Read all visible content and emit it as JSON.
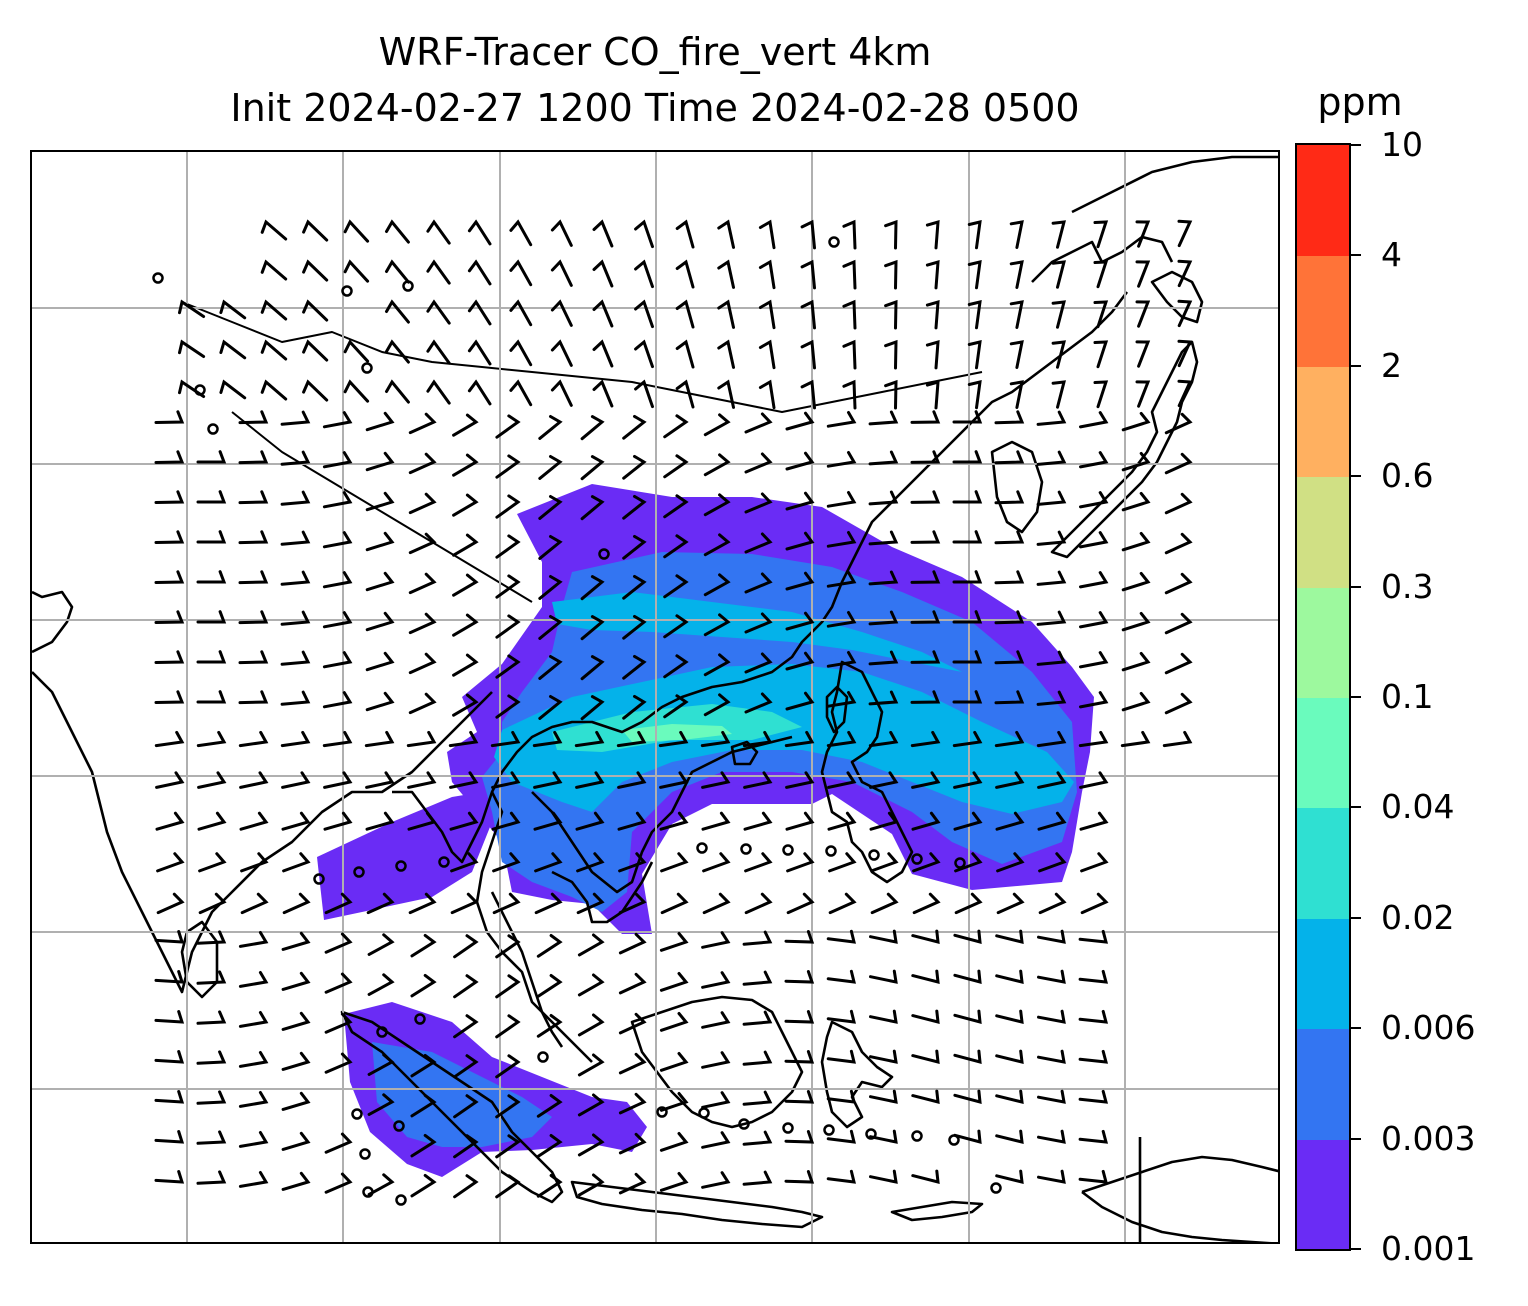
{
  "title": {
    "line1": "WRF-Tracer CO_fire_vert 4km",
    "line2": "Init 2024-02-27 1200 Time 2024-02-28 0500"
  },
  "colorbar": {
    "unit": "ppm",
    "ticks": [
      "0.001",
      "0.003",
      "0.006",
      "0.02",
      "0.04",
      "0.1",
      "0.3",
      "0.6",
      "2",
      "4",
      "10"
    ],
    "colors": [
      "#6a2cf5",
      "#3375f2",
      "#04b2ea",
      "#2fe0d2",
      "#6afbbd",
      "#9df99e",
      "#d0e084",
      "#ffb060",
      "#ff7338",
      "#ff2a16"
    ]
  },
  "map": {
    "gridlines": true,
    "coastline_color": "#000000",
    "gridline_color": "#b0b0b0",
    "features": [
      "coastlines",
      "wind-barbs",
      "calm-circles",
      "tracer-concentration-fill"
    ]
  }
}
